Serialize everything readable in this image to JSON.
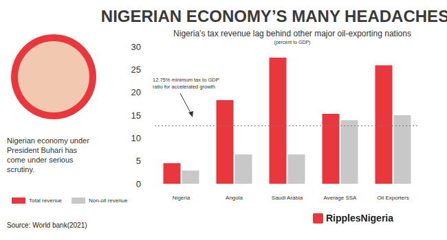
{
  "chart_data": {
    "type": "bar",
    "title": "NIGERIAN ECONOMY’S MANY HEADACHES",
    "subtitle": "Nigeria's tax revenue lag behind other major oil-exporting nations",
    "y_label": "(percent to GDP)",
    "categories": [
      "Nigeria",
      "Angola",
      "Saudi Arabia",
      "Average SSA",
      "Oil Exporters"
    ],
    "series": [
      {
        "name": "Total revenue",
        "color": "#e8383d",
        "values": [
          4.5,
          18.3,
          27.6,
          15.3,
          25.9
        ]
      },
      {
        "name": "Non-oil revenue",
        "color": "#c8c8c8",
        "values": [
          2.9,
          6.4,
          6.4,
          13.9,
          15.0
        ]
      }
    ],
    "ylim": [
      0,
      30
    ],
    "yticks": [
      0,
      5,
      10,
      15,
      20,
      25,
      30
    ],
    "grid": false,
    "legend": "left",
    "annotations": [
      {
        "text": "12.75% minimum tax to GDP ratio for accelerated growth",
        "y": 12.75
      }
    ],
    "caption": "Nigerian economy under President Buhari has come under serious scrutiny.",
    "source": "Source: World bank(2021)",
    "logo": "RipplesNigeria"
  }
}
